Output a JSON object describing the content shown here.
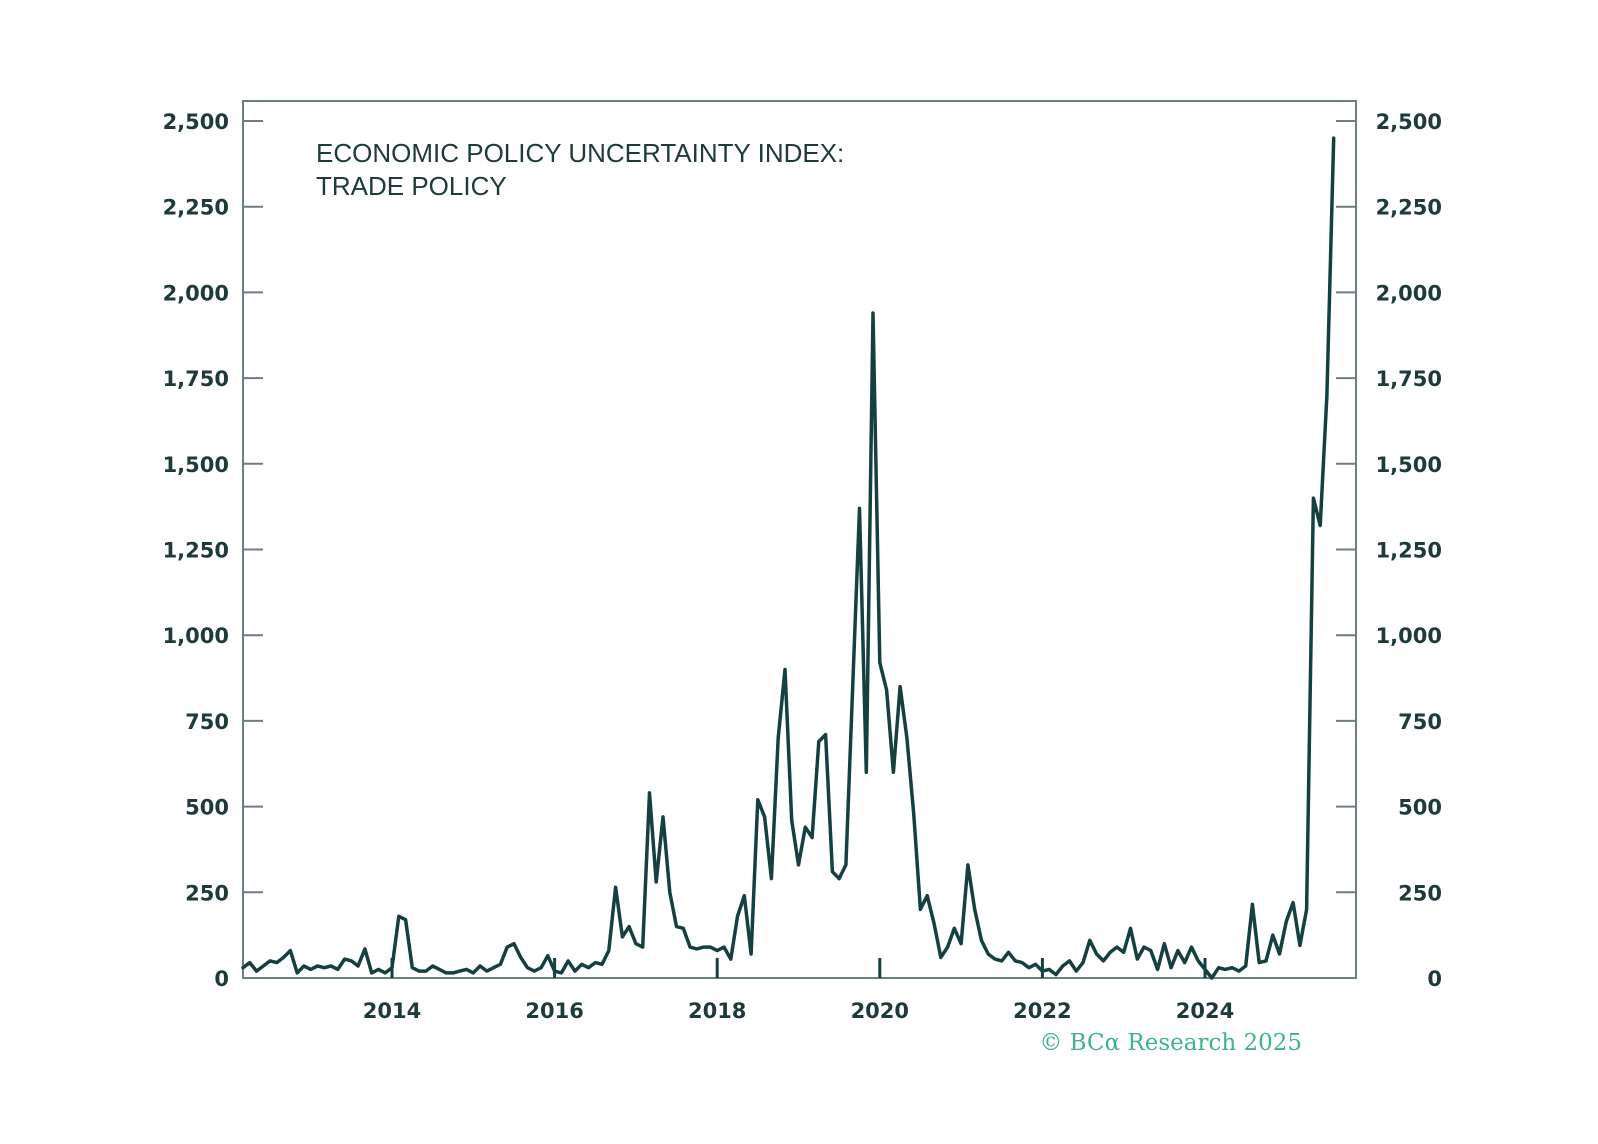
{
  "chart_data": {
    "type": "line",
    "title": "ECONOMIC POLICY UNCERTAINTY INDEX:",
    "subtitle": "TRADE POLICY",
    "credit": "© BCα Research 2025",
    "xlabel": "",
    "ylabel": "",
    "ylim": [
      0,
      2500
    ],
    "xlim": [
      2012.1,
      2025.8
    ],
    "grid": false,
    "y_ticks": [
      0,
      250,
      500,
      750,
      1000,
      1250,
      1500,
      1750,
      2000,
      2250,
      2500
    ],
    "y_tick_labels": [
      "0",
      "250",
      "500",
      "750",
      "1,000",
      "1,250",
      "1,500",
      "1,750",
      "2,000",
      "2,250",
      "2,500"
    ],
    "x_ticks": [
      2014,
      2016,
      2018,
      2020,
      2022,
      2024
    ],
    "x_tick_labels": [
      "2014",
      "2016",
      "2018",
      "2020",
      "2022",
      "2024"
    ],
    "colors": {
      "line": "#163f40",
      "axis": "#6b7f80",
      "text": "#1e3a3a",
      "credit": "#3fb38a"
    },
    "series": [
      {
        "name": "Trade Policy Uncertainty",
        "start": "2012-03",
        "frequency": "monthly",
        "values": [
          30,
          45,
          20,
          35,
          50,
          45,
          60,
          80,
          15,
          35,
          25,
          35,
          30,
          35,
          25,
          55,
          50,
          35,
          85,
          15,
          25,
          15,
          30,
          180,
          170,
          30,
          20,
          20,
          35,
          25,
          15,
          15,
          20,
          25,
          15,
          35,
          20,
          30,
          40,
          90,
          100,
          60,
          30,
          20,
          30,
          65,
          20,
          15,
          50,
          20,
          40,
          30,
          45,
          40,
          80,
          265,
          120,
          150,
          100,
          90,
          540,
          280,
          470,
          250,
          150,
          145,
          90,
          85,
          90,
          90,
          80,
          90,
          55,
          180,
          240,
          70,
          520,
          470,
          290,
          700,
          900,
          460,
          330,
          440,
          410,
          690,
          710,
          310,
          290,
          330,
          850,
          1370,
          600,
          1940,
          920,
          840,
          600,
          850,
          700,
          480,
          200,
          240,
          160,
          60,
          90,
          145,
          100,
          330,
          200,
          110,
          70,
          55,
          50,
          75,
          50,
          45,
          30,
          40,
          20,
          25,
          10,
          35,
          50,
          20,
          45,
          110,
          70,
          50,
          75,
          90,
          75,
          145,
          55,
          90,
          80,
          25,
          100,
          30,
          80,
          45,
          90,
          50,
          25,
          0,
          30,
          25,
          30,
          20,
          35,
          215,
          45,
          50,
          125,
          70,
          165,
          220,
          95,
          200,
          1400,
          1320,
          1700,
          2450
        ]
      }
    ]
  }
}
